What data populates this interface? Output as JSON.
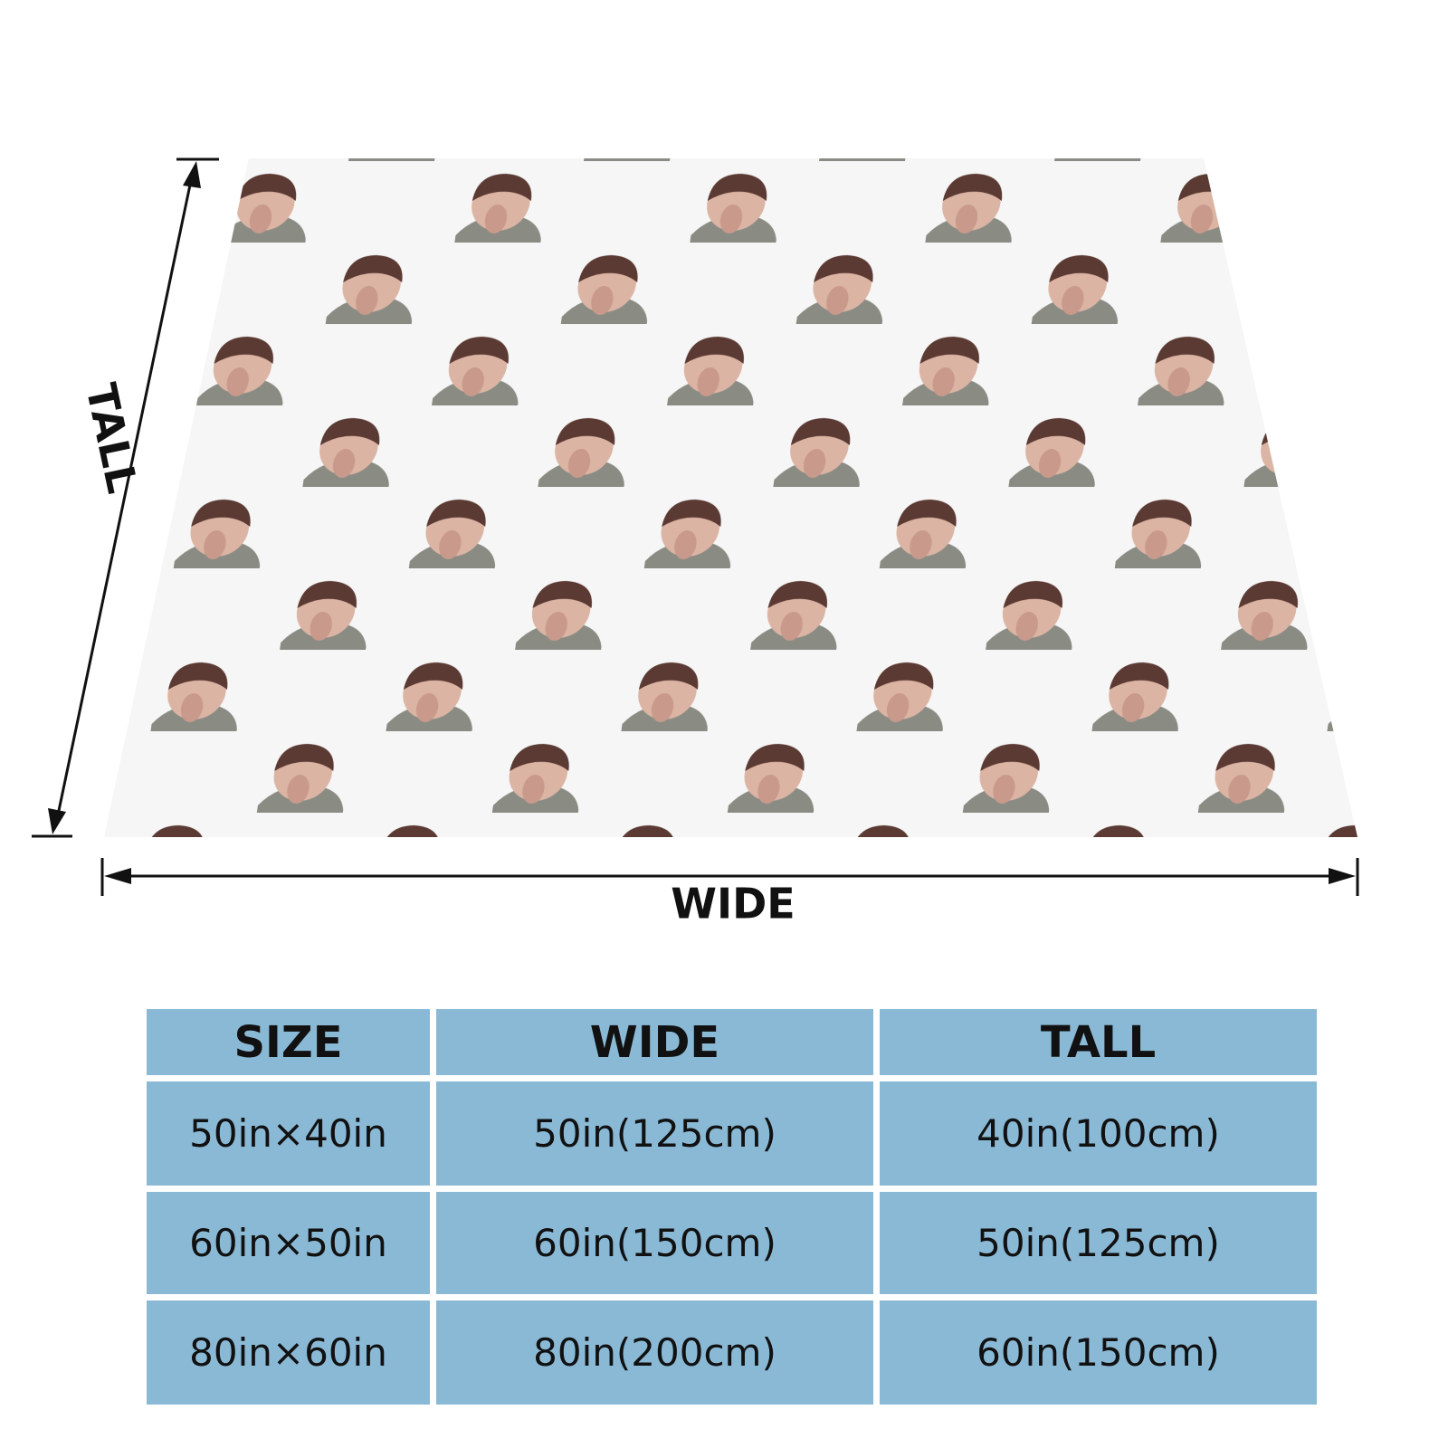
{
  "dimension_labels": {
    "tall": "TALL",
    "wide": "WIDE"
  },
  "table": {
    "header": [
      "SIZE",
      "WIDE",
      "TALL"
    ],
    "rows": [
      [
        "50in×40in",
        "50in(125cm)",
        "40in(100cm)"
      ],
      [
        "60in×50in",
        "60in(150cm)",
        "50in(125cm)"
      ],
      [
        "80in×60in",
        "80in(200cm)",
        "60in(150cm)"
      ]
    ]
  }
}
